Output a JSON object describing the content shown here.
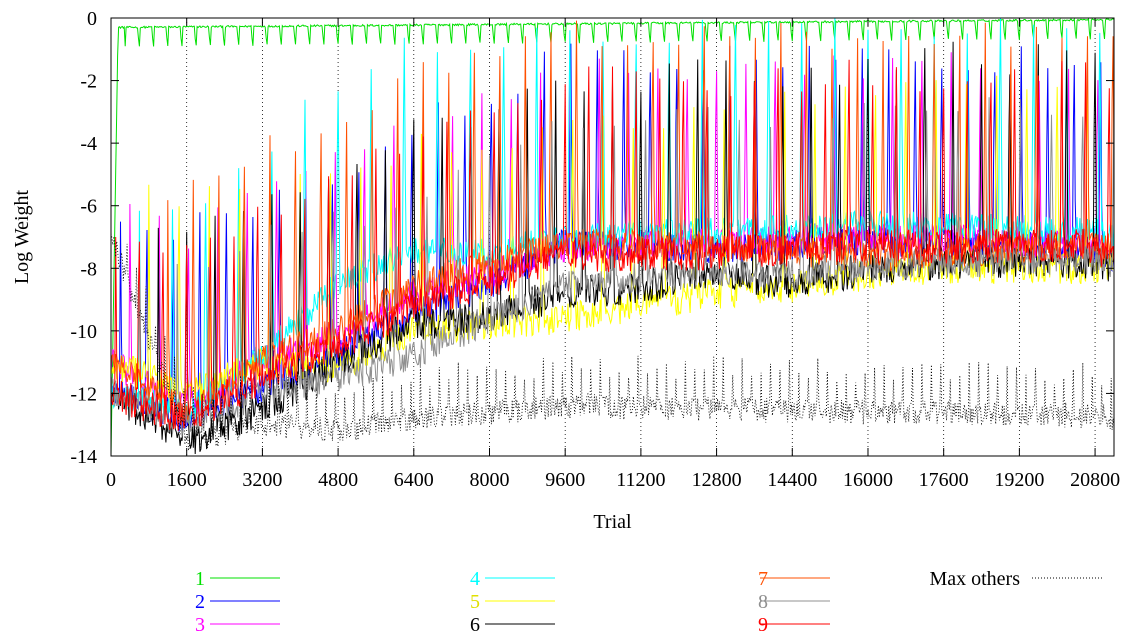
{
  "chart_data": {
    "type": "line",
    "xlabel": "Trial",
    "ylabel": "Log Weight",
    "xlim": [
      0,
      21200
    ],
    "ylim": [
      -14,
      0
    ],
    "x_ticks": [
      "0",
      "1600",
      "3200",
      "4800",
      "6400",
      "8000",
      "9600",
      "11200",
      "12800",
      "14400",
      "16000",
      "17600",
      "19200",
      "20800"
    ],
    "x_tick_values": [
      0,
      1600,
      3200,
      4800,
      6400,
      8000,
      9600,
      11200,
      12800,
      14400,
      16000,
      17600,
      19200,
      20800
    ],
    "y_ticks": [
      "0",
      "-2",
      "-4",
      "-6",
      "-8",
      "-10",
      "-12",
      "-14"
    ],
    "y_tick_values": [
      0,
      -2,
      -4,
      -6,
      -8,
      -10,
      -12,
      -14
    ],
    "grid": "vertical dotted at x ticks",
    "legend_position": "bottom",
    "series": [
      {
        "name": "1",
        "color": "#00e000",
        "style": "solid",
        "baseline": [
          [
            0,
            -14
          ],
          [
            150,
            -0.3
          ],
          [
            21200,
            -0.05
          ]
        ],
        "spike_start": 300,
        "spike_period": 300,
        "spike_amp": -0.6,
        "noise": 0.03
      },
      {
        "name": "2",
        "color": "#0000ff",
        "style": "solid",
        "baseline": [
          [
            0,
            -12
          ],
          [
            1600,
            -12.8
          ],
          [
            3200,
            -11.8
          ],
          [
            4800,
            -10.8
          ],
          [
            6400,
            -9.5
          ],
          [
            8000,
            -8.5
          ],
          [
            9600,
            -7.2
          ],
          [
            12800,
            -7.4
          ],
          [
            16000,
            -7.1
          ],
          [
            20800,
            -7.4
          ],
          [
            21200,
            -7.8
          ]
        ],
        "spike_start": 200,
        "spike_period": 560,
        "spike_amp": 6,
        "noise": 0.5
      },
      {
        "name": "3",
        "color": "#ff00ff",
        "style": "solid",
        "baseline": [
          [
            0,
            -11
          ],
          [
            1600,
            -12.5
          ],
          [
            3200,
            -11
          ],
          [
            4800,
            -10.2
          ],
          [
            6400,
            -8.8
          ],
          [
            8000,
            -8.2
          ],
          [
            9600,
            -7.3
          ],
          [
            12800,
            -7.2
          ],
          [
            16000,
            -7
          ],
          [
            20800,
            -7.2
          ],
          [
            21200,
            -7.5
          ]
        ],
        "spike_start": 400,
        "spike_period": 620,
        "spike_amp": 5.5,
        "noise": 0.5
      },
      {
        "name": "4",
        "color": "#00ffff",
        "style": "solid",
        "baseline": [
          [
            0,
            -12
          ],
          [
            1600,
            -12.6
          ],
          [
            3200,
            -10.8
          ],
          [
            4800,
            -8.5
          ],
          [
            6400,
            -7.4
          ],
          [
            8000,
            -7.5
          ],
          [
            9600,
            -7
          ],
          [
            12800,
            -6.8
          ],
          [
            16000,
            -6.6
          ],
          [
            20800,
            -6.8
          ],
          [
            21200,
            -7
          ]
        ],
        "spike_start": 600,
        "spike_period": 700,
        "spike_amp": 6.5,
        "noise": 0.45
      },
      {
        "name": "5",
        "color": "#ffff00",
        "style": "solid",
        "baseline": [
          [
            0,
            -11
          ],
          [
            1600,
            -12
          ],
          [
            3200,
            -11
          ],
          [
            4800,
            -11.2
          ],
          [
            6400,
            -10
          ],
          [
            8000,
            -9.8
          ],
          [
            9600,
            -9.6
          ],
          [
            11200,
            -9.2
          ],
          [
            12800,
            -8.8
          ],
          [
            14400,
            -8.6
          ],
          [
            16000,
            -8.2
          ],
          [
            17600,
            -8
          ],
          [
            20800,
            -8
          ],
          [
            21200,
            -7.8
          ]
        ],
        "spike_start": 800,
        "spike_period": 640,
        "spike_amp": 6,
        "noise": 0.5
      },
      {
        "name": "6",
        "color": "#000000",
        "style": "solid",
        "baseline": [
          [
            0,
            -12
          ],
          [
            1600,
            -13.5
          ],
          [
            3200,
            -12.5
          ],
          [
            4800,
            -11
          ],
          [
            6400,
            -9.8
          ],
          [
            8000,
            -9.5
          ],
          [
            9600,
            -8.8
          ],
          [
            11200,
            -8.6
          ],
          [
            12800,
            -8.2
          ],
          [
            14400,
            -8.5
          ],
          [
            16000,
            -8
          ],
          [
            17600,
            -7.8
          ],
          [
            20800,
            -7.8
          ],
          [
            21200,
            -7.9
          ]
        ],
        "spike_start": 1000,
        "spike_period": 600,
        "spike_amp": 6.5,
        "noise": 0.55
      },
      {
        "name": "7",
        "color": "#ff5000",
        "style": "solid",
        "baseline": [
          [
            0,
            -11
          ],
          [
            1600,
            -12.5
          ],
          [
            3200,
            -11
          ],
          [
            4800,
            -10
          ],
          [
            6400,
            -8.6
          ],
          [
            8000,
            -7.9
          ],
          [
            9600,
            -7.2
          ],
          [
            12800,
            -7.3
          ],
          [
            16000,
            -7.6
          ],
          [
            20800,
            -7.3
          ],
          [
            21200,
            -7.2
          ]
        ],
        "spike_start": 1200,
        "spike_period": 540,
        "spike_amp": 6.8,
        "noise": 0.5
      },
      {
        "name": "8",
        "color": "#909090",
        "style": "solid",
        "baseline": [
          [
            0,
            -12
          ],
          [
            1600,
            -13
          ],
          [
            3200,
            -12
          ],
          [
            4800,
            -11.5
          ],
          [
            6400,
            -10.8
          ],
          [
            8000,
            -9.6
          ],
          [
            9600,
            -8.6
          ],
          [
            11200,
            -8.3
          ],
          [
            12800,
            -8.1
          ],
          [
            14400,
            -8.2
          ],
          [
            16000,
            -7.9
          ],
          [
            20800,
            -7.7
          ],
          [
            21200,
            -7.8
          ]
        ],
        "spike_start": 1400,
        "spike_period": 660,
        "spike_amp": 5,
        "noise": 0.5
      },
      {
        "name": "9",
        "color": "#ff0000",
        "style": "solid",
        "baseline": [
          [
            0,
            -12
          ],
          [
            1600,
            -12.8
          ],
          [
            3200,
            -11.5
          ],
          [
            4800,
            -10.5
          ],
          [
            6400,
            -9.2
          ],
          [
            8000,
            -8.4
          ],
          [
            9600,
            -7.6
          ],
          [
            12800,
            -7.5
          ],
          [
            16000,
            -7.3
          ],
          [
            20800,
            -7.3
          ],
          [
            21200,
            -7.6
          ]
        ],
        "spike_start": 100,
        "spike_period": 500,
        "spike_amp": 5.5,
        "noise": 0.55
      },
      {
        "name": "Max others",
        "color": "#000000",
        "style": "dotted",
        "baseline": [
          [
            0,
            -7
          ],
          [
            1600,
            -13.5
          ],
          [
            3200,
            -13
          ],
          [
            4800,
            -13.2
          ],
          [
            6400,
            -12.8
          ],
          [
            8000,
            -12.6
          ],
          [
            9600,
            -12.4
          ],
          [
            12800,
            -12.5
          ],
          [
            16000,
            -12.6
          ],
          [
            20800,
            -12.7
          ],
          [
            21200,
            -12.8
          ]
        ],
        "spike_start": 150,
        "spike_period": 200,
        "spike_amp": 2.2,
        "noise": 0.4
      }
    ]
  }
}
